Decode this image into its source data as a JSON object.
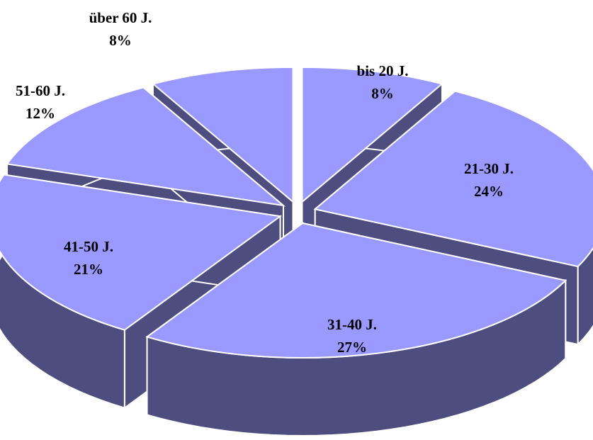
{
  "chart_data": {
    "type": "pie",
    "style": "3d-exploded",
    "categories": [
      "bis 20 J.",
      "21-30 J.",
      "31-40 J.",
      "41-50 J.",
      "51-60 J.",
      "über 60 J."
    ],
    "values": [
      8,
      24,
      27,
      21,
      12,
      8
    ],
    "value_labels": [
      "8%",
      "24%",
      "27%",
      "21%",
      "12%",
      "8%"
    ],
    "title": "",
    "legend": "none",
    "colors": {
      "top": "#9999ff",
      "side": "#4d4d80",
      "edge": "#ffffff"
    }
  }
}
